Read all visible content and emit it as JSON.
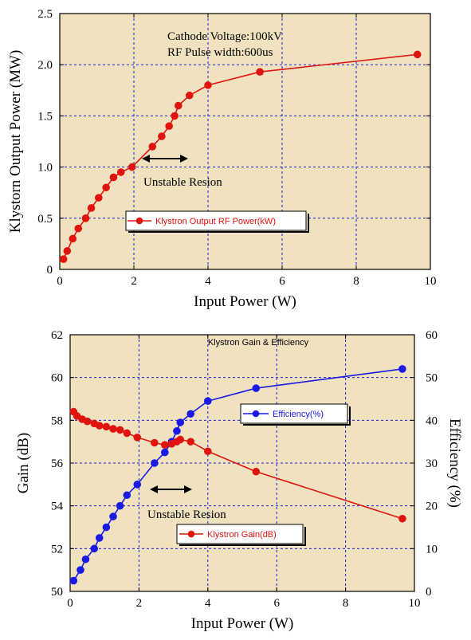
{
  "colors": {
    "plot_bg": "#F0E2BE",
    "grid": "#1a1adf",
    "red": "#E0140F",
    "blue": "#1A1AE6",
    "axis": "#000000"
  },
  "chart_data": [
    {
      "type": "line",
      "title": "",
      "xlabel": "Input Power (W)",
      "ylabel": "Klystorn Output Power (MW)",
      "xlim": [
        0,
        10
      ],
      "ylim": [
        0,
        2.5
      ],
      "xticks": [
        "0",
        "2",
        "4",
        "6",
        "8",
        "10"
      ],
      "yticks": [
        "0",
        "0.5",
        "1.0",
        "1.5",
        "2.0",
        "2.5"
      ],
      "annotations": [
        "Cathode Voltage:100kV",
        "RF Pulse width:600us",
        "Unstable Resion"
      ],
      "grid": true,
      "legend_position": "lower-center",
      "series": [
        {
          "name": "Klystron Output RF Power(kW)",
          "color": "#E0140F",
          "x": [
            0.1,
            0.2,
            0.35,
            0.5,
            0.7,
            0.85,
            1.05,
            1.25,
            1.45,
            1.65,
            1.95,
            2.5,
            2.75,
            2.95,
            3.1,
            3.2,
            3.5,
            4.0,
            5.4,
            9.65
          ],
          "y": [
            0.1,
            0.18,
            0.3,
            0.4,
            0.5,
            0.6,
            0.7,
            0.8,
            0.9,
            0.95,
            1.0,
            1.2,
            1.3,
            1.4,
            1.5,
            1.6,
            1.7,
            1.8,
            1.93,
            2.1
          ]
        }
      ]
    },
    {
      "type": "line",
      "title": "Klystron Gain & Efficiency",
      "xlabel": "Input Power (W)",
      "ylabel": "Gain (dB)",
      "y2label": "Efficiency (%)",
      "xlim": [
        0,
        10
      ],
      "ylim": [
        50,
        62
      ],
      "y2lim": [
        0,
        60
      ],
      "xticks": [
        "0",
        "2",
        "4",
        "6",
        "8",
        "10"
      ],
      "yticks": [
        "50",
        "52",
        "54",
        "56",
        "58",
        "60",
        "62"
      ],
      "y2ticks": [
        "0",
        "10",
        "20",
        "30",
        "40",
        "50",
        "60"
      ],
      "annotations": [
        "Unstable Resion"
      ],
      "grid": true,
      "series": [
        {
          "name": "Efficiency(%)",
          "axis": "right",
          "color": "#1A1AE6",
          "x": [
            0.1,
            0.3,
            0.45,
            0.7,
            0.85,
            1.05,
            1.25,
            1.45,
            1.65,
            1.95,
            2.45,
            2.75,
            2.95,
            3.1,
            3.2,
            3.5,
            4.0,
            5.4,
            9.65
          ],
          "y": [
            2.5,
            5,
            7.5,
            10,
            12.5,
            15,
            17.5,
            20,
            22.5,
            25,
            30,
            32.5,
            35,
            37.5,
            39.5,
            41.5,
            44.5,
            47.5,
            52
          ]
        },
        {
          "name": "Klystron Gain(dB)",
          "axis": "left",
          "color": "#E0140F",
          "x": [
            0.1,
            0.2,
            0.35,
            0.5,
            0.7,
            0.85,
            1.05,
            1.25,
            1.45,
            1.65,
            1.95,
            2.45,
            2.75,
            2.95,
            3.1,
            3.2,
            3.5,
            4.0,
            5.4,
            9.65
          ],
          "y": [
            58.4,
            58.2,
            58.05,
            57.95,
            57.85,
            57.75,
            57.7,
            57.6,
            57.55,
            57.4,
            57.2,
            56.95,
            56.85,
            56.9,
            57.0,
            57.1,
            57.0,
            56.55,
            55.6,
            53.4
          ]
        }
      ]
    }
  ]
}
